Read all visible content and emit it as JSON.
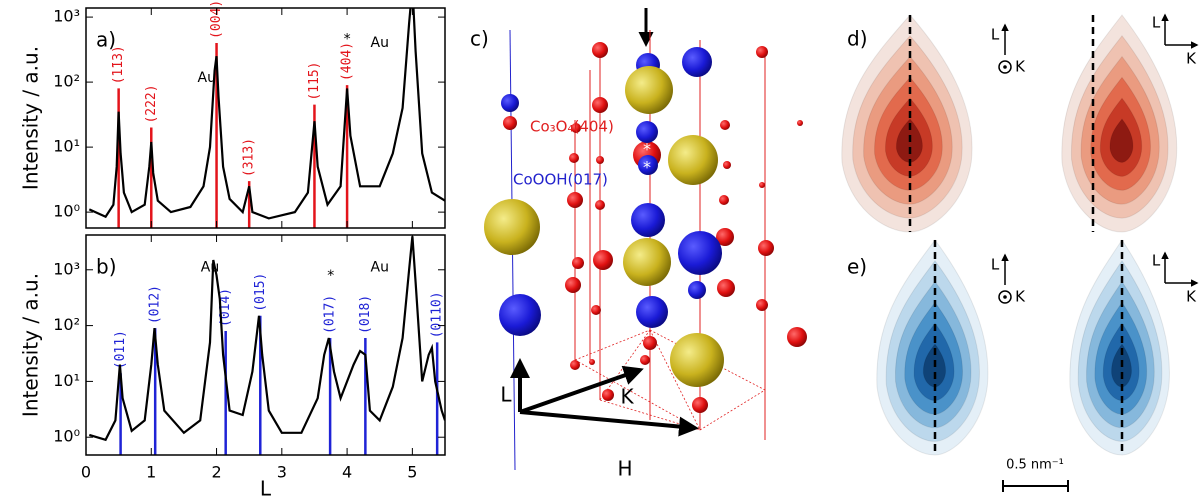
{
  "chart_data": [
    {
      "type": "line",
      "panel_label": "a)",
      "ylabel": "Intensity / a.u.",
      "log_y": true,
      "xtick_labels": false,
      "xlim": [
        0,
        5.5
      ],
      "ylim": [
        0.57,
        1380
      ],
      "xticks": [
        0,
        1,
        2,
        3,
        4,
        5
      ],
      "yticks": [
        {
          "value": 1,
          "label": "10⁰"
        },
        {
          "value": 10,
          "label": "10¹"
        },
        {
          "value": 100,
          "label": "10²"
        },
        {
          "value": 1000,
          "label": "10³"
        }
      ],
      "x": [
        0.05,
        0.3,
        0.42,
        0.47,
        0.5,
        0.53,
        0.58,
        0.7,
        0.9,
        0.97,
        1.0,
        1.03,
        1.1,
        1.3,
        1.6,
        1.8,
        1.9,
        1.97,
        2.0,
        2.03,
        2.1,
        2.2,
        2.4,
        2.5,
        2.55,
        2.8,
        3.2,
        3.4,
        3.5,
        3.55,
        3.7,
        3.9,
        4.0,
        4.05,
        4.2,
        4.5,
        4.7,
        4.85,
        4.95,
        5.0,
        5.05,
        5.15,
        5.3,
        5.5
      ],
      "series": [
        {
          "color": "#000000",
          "values": [
            1.1,
            0.85,
            1.3,
            5,
            35,
            8,
            2,
            1.0,
            1.3,
            5,
            12,
            4,
            1.5,
            1.0,
            1.2,
            2.5,
            10,
            150,
            250,
            60,
            5,
            1.6,
            1.0,
            2.5,
            1.0,
            0.8,
            1.0,
            2,
            25,
            5,
            1.3,
            2.5,
            80,
            15,
            2.5,
            2.5,
            8,
            40,
            800,
            3000,
            300,
            8,
            2,
            1.5
          ]
        }
      ],
      "reflections": {
        "color": "#e3141b",
        "x": [
          0.5,
          1.0,
          2.0,
          2.5,
          3.5,
          4.0
        ],
        "values": [
          80,
          20,
          400,
          3,
          45,
          90
        ],
        "labels": [
          "(1̄13)",
          "(222)",
          "(004)",
          "(31̄3)",
          "(115)",
          "(404)"
        ]
      },
      "annotations": [
        {
          "text": "Au",
          "x": 1.85,
          "y": 115
        },
        {
          "text": "*",
          "x": 4.0,
          "y": 450
        },
        {
          "text": "Au",
          "x": 4.5,
          "y": 400
        }
      ]
    },
    {
      "type": "line",
      "panel_label": "b)",
      "ylabel": "Intensity / a.u.",
      "xlabel": "L",
      "log_y": true,
      "xtick_labels": true,
      "xlim": [
        0,
        5.5
      ],
      "ylim": [
        0.48,
        4200
      ],
      "xticks": [
        0,
        1,
        2,
        3,
        4,
        5
      ],
      "yticks": [
        {
          "value": 1,
          "label": "10⁰"
        },
        {
          "value": 10,
          "label": "10¹"
        },
        {
          "value": 100,
          "label": "10²"
        },
        {
          "value": 1000,
          "label": "10³"
        }
      ],
      "x": [
        0.05,
        0.3,
        0.45,
        0.52,
        0.56,
        0.7,
        0.9,
        1.0,
        1.05,
        1.1,
        1.2,
        1.5,
        1.75,
        1.9,
        1.95,
        2.0,
        2.05,
        2.1,
        2.2,
        2.4,
        2.55,
        2.65,
        2.7,
        2.8,
        3.0,
        3.3,
        3.55,
        3.65,
        3.72,
        3.8,
        3.9,
        4.1,
        4.2,
        4.28,
        4.35,
        4.5,
        4.7,
        4.85,
        4.95,
        5.0,
        5.05,
        5.15,
        5.25,
        5.3,
        5.35,
        5.45,
        5.5
      ],
      "series": [
        {
          "color": "#000000",
          "values": [
            1.1,
            0.9,
            2,
            20,
            5,
            1.3,
            2,
            20,
            90,
            20,
            3,
            1.2,
            2,
            50,
            1500,
            800,
            300,
            30,
            3,
            2.5,
            15,
            150,
            30,
            3,
            1.2,
            1.2,
            5,
            30,
            60,
            15,
            5,
            20,
            35,
            30,
            3,
            2,
            8,
            60,
            1000,
            4000,
            600,
            10,
            30,
            40,
            10,
            3,
            2
          ]
        }
      ],
      "reflections": {
        "color": "#1f23d6",
        "x": [
          0.53,
          1.06,
          2.14,
          2.67,
          3.74,
          4.28,
          5.38
        ],
        "values": [
          14,
          90,
          80,
          150,
          60,
          60,
          50
        ],
        "labels": [
          "(011)",
          "(012)",
          "(014)",
          "(015)",
          "(017)",
          "(018)",
          "(0110)"
        ]
      },
      "annotations": [
        {
          "text": "Au",
          "x": 1.9,
          "y": 1100
        },
        {
          "text": "*",
          "x": 3.75,
          "y": 780
        },
        {
          "text": "Au",
          "x": 4.5,
          "y": 1100
        }
      ]
    }
  ],
  "structure": {
    "label": "c)",
    "phase_labels": [
      "Co₃O₄(404)",
      "CoOOH(017)"
    ],
    "markers": [
      "*",
      "*"
    ],
    "axes": [
      "L",
      "K",
      "H"
    ]
  },
  "maps": {
    "d_label": "d)",
    "e_label": "e)",
    "axis_L": "L",
    "axis_K": "K",
    "scale_bar": "0.5 nm⁻¹"
  }
}
